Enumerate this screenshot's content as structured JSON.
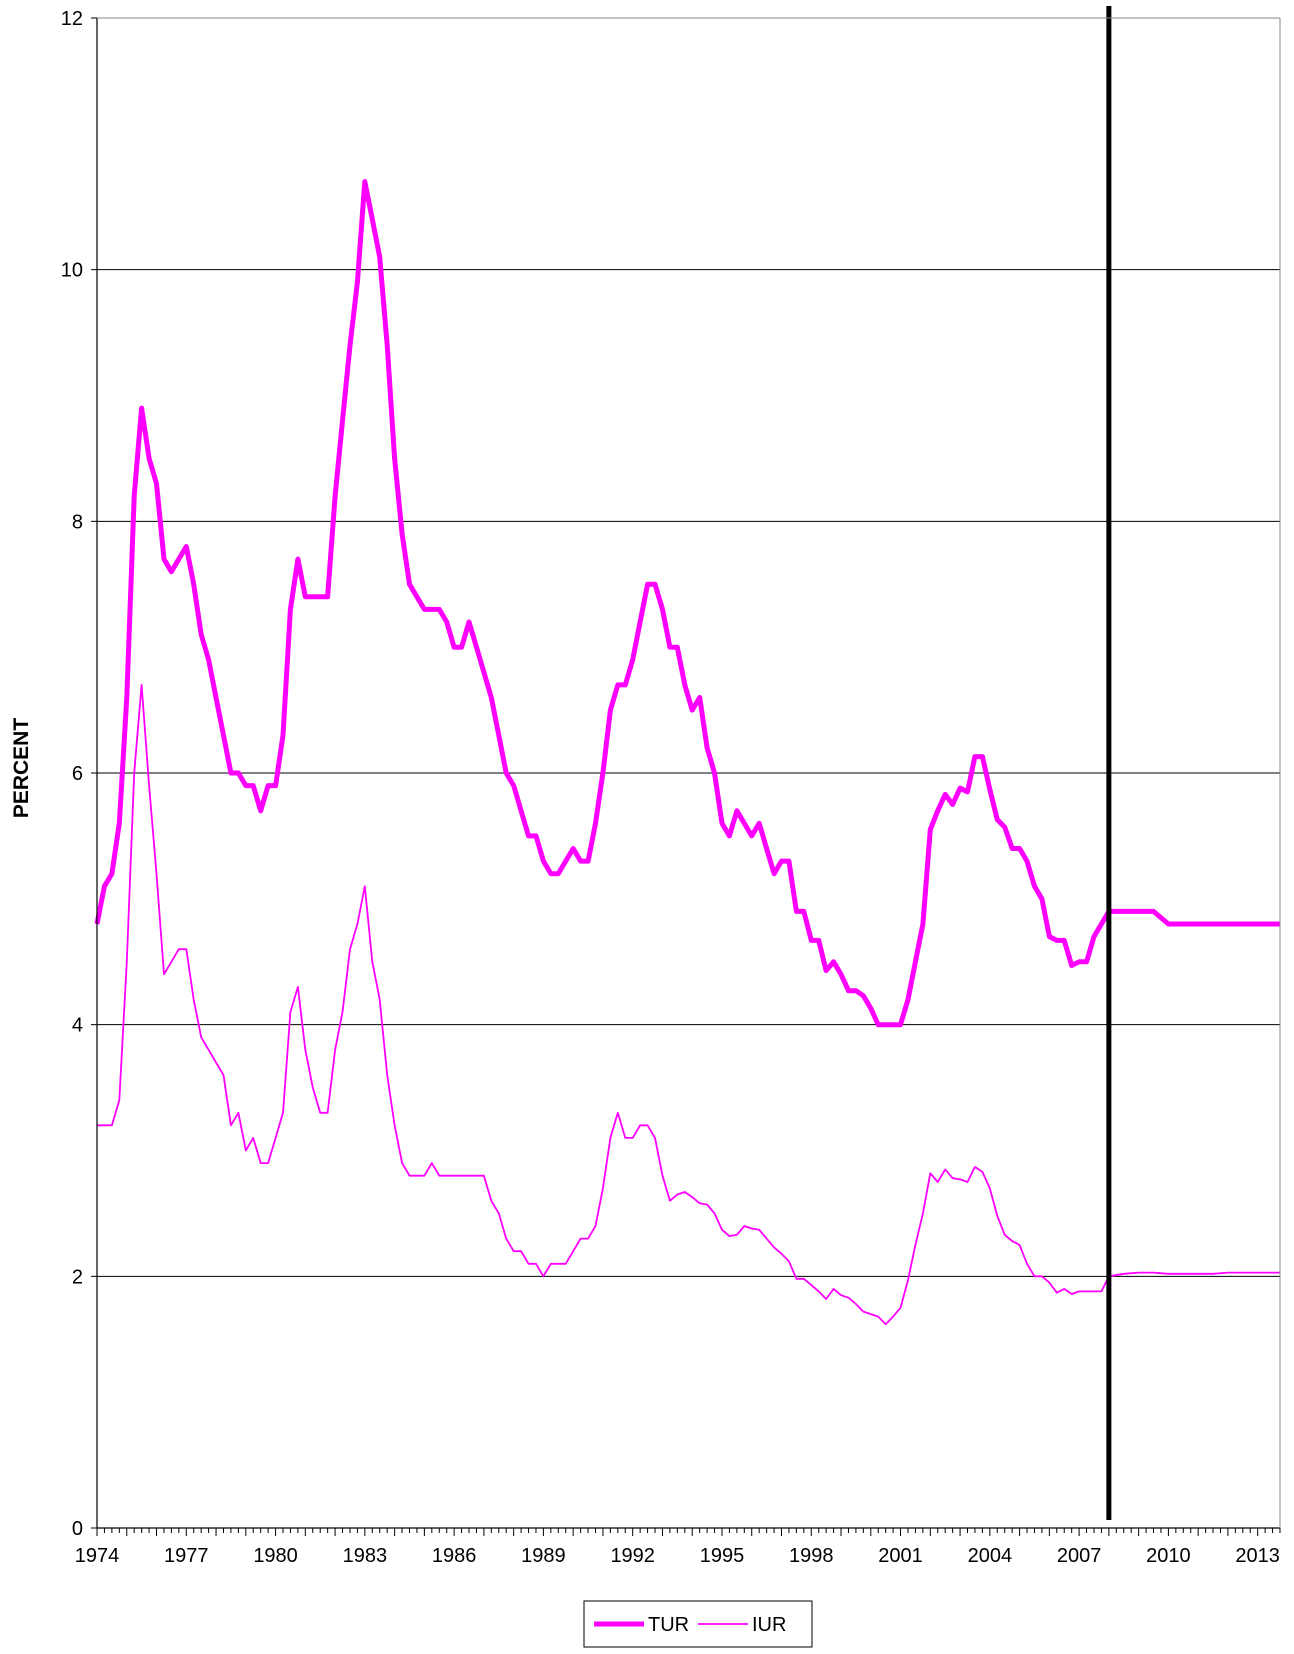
{
  "chart_data": {
    "type": "line",
    "title": "",
    "xlabel": "",
    "ylabel": "PERCENT",
    "ylim": [
      0,
      12
    ],
    "xlim": [
      1974.0,
      2013.75
    ],
    "y_ticks": [
      0,
      2,
      4,
      6,
      8,
      10,
      12
    ],
    "x_tick_labels": [
      "1974",
      "1977",
      "1980",
      "1983",
      "1986",
      "1989",
      "1992",
      "1995",
      "1998",
      "2001",
      "2004",
      "2007",
      "2010",
      "2013"
    ],
    "grid": "horizontal",
    "vertical_marker_x": 2008.0,
    "legend_position": "bottom",
    "colors": {
      "series": "#ff00ff",
      "marker": "#000000",
      "grid": "#000000"
    },
    "series": [
      {
        "name": "TUR",
        "line_weight": "thick",
        "x": [
          1974.0,
          1974.25,
          1974.5,
          1974.75,
          1975.0,
          1975.25,
          1975.5,
          1975.75,
          1976.0,
          1976.25,
          1976.5,
          1976.75,
          1977.0,
          1977.25,
          1977.5,
          1977.75,
          1978.0,
          1978.25,
          1978.5,
          1978.75,
          1979.0,
          1979.25,
          1979.5,
          1979.75,
          1980.0,
          1980.25,
          1980.5,
          1980.75,
          1981.0,
          1981.25,
          1981.5,
          1981.75,
          1982.0,
          1982.25,
          1982.5,
          1982.75,
          1983.0,
          1983.25,
          1983.5,
          1983.75,
          1984.0,
          1984.25,
          1984.5,
          1984.75,
          1985.0,
          1985.25,
          1985.5,
          1985.75,
          1986.0,
          1986.25,
          1986.5,
          1986.75,
          1987.0,
          1987.25,
          1987.5,
          1987.75,
          1988.0,
          1988.25,
          1988.5,
          1988.75,
          1989.0,
          1989.25,
          1989.5,
          1989.75,
          1990.0,
          1990.25,
          1990.5,
          1990.75,
          1991.0,
          1991.25,
          1991.5,
          1991.75,
          1992.0,
          1992.25,
          1992.5,
          1992.75,
          1993.0,
          1993.25,
          1993.5,
          1993.75,
          1994.0,
          1994.25,
          1994.5,
          1994.75,
          1995.0,
          1995.25,
          1995.5,
          1995.75,
          1996.0,
          1996.25,
          1996.5,
          1996.75,
          1997.0,
          1997.25,
          1997.5,
          1997.75,
          1998.0,
          1998.25,
          1998.5,
          1998.75,
          1999.0,
          1999.25,
          1999.5,
          1999.75,
          2000.0,
          2000.25,
          2000.5,
          2000.75,
          2001.0,
          2001.25,
          2001.5,
          2001.75,
          2002.0,
          2002.25,
          2002.5,
          2002.75,
          2003.0,
          2003.25,
          2003.5,
          2003.75,
          2004.0,
          2004.25,
          2004.5,
          2004.75,
          2005.0,
          2005.25,
          2005.5,
          2005.75,
          2006.0,
          2006.25,
          2006.5,
          2006.75,
          2007.0,
          2007.25,
          2007.5,
          2007.75,
          2008.0,
          2008.5,
          2009.0,
          2009.5,
          2010.0,
          2010.5,
          2011.0,
          2011.5,
          2012.0,
          2012.5,
          2013.0,
          2013.5,
          2013.75
        ],
        "values": [
          4.8,
          5.1,
          5.2,
          5.6,
          6.6,
          8.2,
          8.9,
          8.5,
          8.3,
          7.7,
          7.6,
          7.7,
          7.8,
          7.5,
          7.1,
          6.9,
          6.6,
          6.3,
          6.0,
          6.0,
          5.9,
          5.9,
          5.7,
          5.9,
          5.9,
          6.3,
          7.3,
          7.7,
          7.4,
          7.4,
          7.4,
          7.4,
          8.2,
          8.8,
          9.4,
          9.9,
          10.7,
          10.4,
          10.1,
          9.4,
          8.5,
          7.9,
          7.5,
          7.4,
          7.3,
          7.3,
          7.3,
          7.2,
          7.0,
          7.0,
          7.2,
          7.0,
          6.8,
          6.6,
          6.3,
          6.0,
          5.9,
          5.7,
          5.5,
          5.5,
          5.3,
          5.2,
          5.2,
          5.3,
          5.4,
          5.3,
          5.3,
          5.6,
          6.0,
          6.5,
          6.7,
          6.7,
          6.9,
          7.2,
          7.5,
          7.5,
          7.3,
          7.0,
          7.0,
          6.7,
          6.5,
          6.6,
          6.2,
          6.0,
          5.6,
          5.5,
          5.7,
          5.6,
          5.5,
          5.6,
          5.4,
          5.2,
          5.3,
          5.3,
          4.9,
          4.9,
          4.67,
          4.67,
          4.43,
          4.5,
          4.4,
          4.27,
          4.27,
          4.23,
          4.13,
          4.0,
          4.0,
          4.0,
          4.0,
          4.2,
          4.5,
          4.8,
          5.55,
          5.7,
          5.83,
          5.75,
          5.88,
          5.85,
          6.13,
          6.13,
          5.87,
          5.63,
          5.57,
          5.4,
          5.4,
          5.3,
          5.1,
          5.0,
          4.7,
          4.67,
          4.67,
          4.47,
          4.5,
          4.5,
          4.7,
          4.8,
          4.9,
          4.9,
          4.9,
          4.9,
          4.8,
          4.8,
          4.8,
          4.8,
          4.8,
          4.8,
          4.8,
          4.8,
          4.8
        ]
      },
      {
        "name": "IUR",
        "line_weight": "thin",
        "x": [
          1974.0,
          1974.25,
          1974.5,
          1974.75,
          1975.0,
          1975.25,
          1975.5,
          1975.75,
          1976.0,
          1976.25,
          1976.5,
          1976.75,
          1977.0,
          1977.25,
          1977.5,
          1977.75,
          1978.0,
          1978.25,
          1978.5,
          1978.75,
          1979.0,
          1979.25,
          1979.5,
          1979.75,
          1980.0,
          1980.25,
          1980.5,
          1980.75,
          1981.0,
          1981.25,
          1981.5,
          1981.75,
          1982.0,
          1982.25,
          1982.5,
          1982.75,
          1983.0,
          1983.25,
          1983.5,
          1983.75,
          1984.0,
          1984.25,
          1984.5,
          1984.75,
          1985.0,
          1985.25,
          1985.5,
          1985.75,
          1986.0,
          1986.25,
          1986.5,
          1986.75,
          1987.0,
          1987.25,
          1987.5,
          1987.75,
          1988.0,
          1988.25,
          1988.5,
          1988.75,
          1989.0,
          1989.25,
          1989.5,
          1989.75,
          1990.0,
          1990.25,
          1990.5,
          1990.75,
          1991.0,
          1991.25,
          1991.5,
          1991.75,
          1992.0,
          1992.25,
          1992.5,
          1992.75,
          1993.0,
          1993.25,
          1993.5,
          1993.75,
          1994.0,
          1994.25,
          1994.5,
          1994.75,
          1995.0,
          1995.25,
          1995.5,
          1995.75,
          1996.0,
          1996.25,
          1996.5,
          1996.75,
          1997.0,
          1997.25,
          1997.5,
          1997.75,
          1998.0,
          1998.25,
          1998.5,
          1998.75,
          1999.0,
          1999.25,
          1999.5,
          1999.75,
          2000.0,
          2000.25,
          2000.5,
          2000.75,
          2001.0,
          2001.25,
          2001.5,
          2001.75,
          2002.0,
          2002.25,
          2002.5,
          2002.75,
          2003.0,
          2003.25,
          2003.5,
          2003.75,
          2004.0,
          2004.25,
          2004.5,
          2004.75,
          2005.0,
          2005.25,
          2005.5,
          2005.75,
          2006.0,
          2006.25,
          2006.5,
          2006.75,
          2007.0,
          2007.25,
          2007.5,
          2007.75,
          2008.0,
          2008.5,
          2009.0,
          2009.5,
          2010.0,
          2010.5,
          2011.0,
          2011.5,
          2012.0,
          2012.5,
          2013.0,
          2013.5,
          2013.75
        ],
        "values": [
          3.2,
          3.2,
          3.2,
          3.4,
          4.5,
          6.0,
          6.7,
          5.9,
          5.2,
          4.4,
          4.5,
          4.6,
          4.6,
          4.2,
          3.9,
          3.8,
          3.7,
          3.6,
          3.2,
          3.3,
          3.0,
          3.1,
          2.9,
          2.9,
          3.1,
          3.3,
          4.1,
          4.3,
          3.8,
          3.5,
          3.3,
          3.3,
          3.8,
          4.1,
          4.6,
          4.8,
          5.1,
          4.5,
          4.2,
          3.6,
          3.2,
          2.9,
          2.8,
          2.8,
          2.8,
          2.9,
          2.8,
          2.8,
          2.8,
          2.8,
          2.8,
          2.8,
          2.8,
          2.6,
          2.5,
          2.3,
          2.2,
          2.2,
          2.1,
          2.1,
          2.0,
          2.1,
          2.1,
          2.1,
          2.2,
          2.3,
          2.3,
          2.4,
          2.7,
          3.1,
          3.3,
          3.1,
          3.1,
          3.2,
          3.2,
          3.1,
          2.8,
          2.6,
          2.65,
          2.67,
          2.63,
          2.58,
          2.57,
          2.5,
          2.37,
          2.32,
          2.33,
          2.4,
          2.38,
          2.37,
          2.3,
          2.23,
          2.18,
          2.12,
          1.98,
          1.98,
          1.93,
          1.88,
          1.82,
          1.9,
          1.85,
          1.83,
          1.78,
          1.72,
          1.7,
          1.68,
          1.62,
          1.68,
          1.75,
          1.97,
          2.25,
          2.5,
          2.82,
          2.75,
          2.85,
          2.78,
          2.77,
          2.75,
          2.87,
          2.83,
          2.7,
          2.48,
          2.33,
          2.28,
          2.25,
          2.1,
          2.0,
          2.0,
          1.95,
          1.87,
          1.9,
          1.86,
          1.88,
          1.88,
          1.88,
          1.88,
          2.0,
          2.02,
          2.03,
          2.03,
          2.02,
          2.02,
          2.02,
          2.02,
          2.03,
          2.03,
          2.03,
          2.03,
          2.03
        ]
      }
    ]
  }
}
